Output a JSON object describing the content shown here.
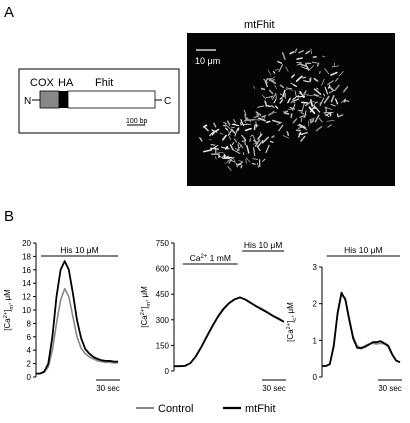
{
  "panel_a": {
    "label": "A",
    "construct": {
      "segments": [
        "COX",
        "HA",
        "Fhit"
      ],
      "n_term": "N",
      "c_term": "C",
      "scale_label": "100 bp"
    },
    "micrograph": {
      "title": "mtFhit",
      "scale_label": "10 μm"
    }
  },
  "panel_b": {
    "label": "B",
    "legend": [
      {
        "name": "Control",
        "color": "#888888"
      },
      {
        "name": "mtFhit",
        "color": "#000000"
      }
    ]
  },
  "chart_data": [
    {
      "type": "line",
      "ylabel": "[Ca2+]m, μM",
      "ylim": [
        0,
        20
      ],
      "yticks": [
        0,
        2,
        4,
        6,
        8,
        10,
        12,
        14,
        16,
        18,
        20
      ],
      "yticklabels": [
        "0",
        "2",
        "4",
        "6",
        "8",
        "10",
        "12",
        "14",
        "16",
        "18",
        "20"
      ],
      "xlim": [
        0,
        100
      ],
      "stimuli": [
        {
          "label": "His 10 μM",
          "from": 6,
          "to": 100
        }
      ],
      "time_bar": "30 sec",
      "series": [
        {
          "name": "Control",
          "color": "#888888",
          "x": [
            0,
            5,
            10,
            15,
            20,
            25,
            30,
            35,
            40,
            45,
            50,
            55,
            60,
            65,
            70,
            75,
            80,
            85,
            90,
            95,
            100
          ],
          "y": [
            0.5,
            0.5,
            0.7,
            1.5,
            4.0,
            8.0,
            11.5,
            13.2,
            12.0,
            9.0,
            6.0,
            4.3,
            3.5,
            3.0,
            2.7,
            2.4,
            2.3,
            2.2,
            2.2,
            2.1,
            2.1
          ]
        },
        {
          "name": "mtFhit",
          "color": "#000000",
          "x": [
            0,
            5,
            10,
            15,
            20,
            25,
            30,
            35,
            40,
            45,
            50,
            55,
            60,
            65,
            70,
            75,
            80,
            85,
            90,
            95,
            100
          ],
          "y": [
            0.5,
            0.5,
            0.8,
            2.0,
            6.0,
            12.0,
            16.0,
            17.3,
            16.0,
            12.5,
            8.5,
            5.8,
            4.2,
            3.5,
            3.0,
            2.7,
            2.5,
            2.4,
            2.4,
            2.3,
            2.3
          ]
        }
      ]
    },
    {
      "type": "line",
      "ylabel": "[Ca2+]m, μM",
      "ylim": [
        0,
        750
      ],
      "yticks": [
        0,
        150,
        300,
        450,
        600,
        750
      ],
      "yticklabels": [
        "0",
        "150",
        "300",
        "450",
        "600",
        "750"
      ],
      "xlim": [
        0,
        100
      ],
      "stimuli": [
        {
          "label": "Ca2+ 1 mM",
          "from": 8,
          "to": 58
        },
        {
          "label": "His 10 μM",
          "from": 62,
          "to": 100
        }
      ],
      "time_bar": "30 sec",
      "series": [
        {
          "name": "Control",
          "color": "#888888",
          "x": [
            0,
            5,
            10,
            15,
            20,
            25,
            30,
            35,
            40,
            45,
            50,
            55,
            60,
            65,
            70,
            75,
            80,
            85,
            90,
            95,
            100
          ],
          "y": [
            28,
            28,
            30,
            45,
            85,
            140,
            200,
            260,
            315,
            360,
            395,
            418,
            430,
            420,
            400,
            380,
            365,
            345,
            325,
            310,
            290
          ]
        },
        {
          "name": "mtFhit",
          "color": "#000000",
          "x": [
            0,
            5,
            10,
            15,
            20,
            25,
            30,
            35,
            40,
            45,
            50,
            55,
            60,
            65,
            70,
            75,
            80,
            85,
            90,
            95,
            100
          ],
          "y": [
            28,
            28,
            30,
            47,
            88,
            143,
            205,
            265,
            320,
            365,
            398,
            420,
            432,
            418,
            398,
            378,
            360,
            342,
            322,
            305,
            287
          ]
        }
      ]
    },
    {
      "type": "line",
      "ylabel": "[Ca2+]c, μM",
      "ylim": [
        0,
        3
      ],
      "yticks": [
        0,
        1,
        2,
        3
      ],
      "yticklabels": [
        "0",
        "1",
        "2",
        "3"
      ],
      "xlim": [
        0,
        100
      ],
      "stimuli": [
        {
          "label": "His 10 μM",
          "from": 6,
          "to": 100
        }
      ],
      "time_bar": "30 sec",
      "series": [
        {
          "name": "Control",
          "color": "#888888",
          "x": [
            0,
            5,
            10,
            15,
            20,
            25,
            30,
            35,
            40,
            45,
            50,
            55,
            60,
            65,
            70,
            75,
            80,
            85,
            90,
            95,
            100
          ],
          "y": [
            0.3,
            0.3,
            0.35,
            0.8,
            1.7,
            2.25,
            2.15,
            1.6,
            1.1,
            0.85,
            0.8,
            0.85,
            0.9,
            0.92,
            0.9,
            0.92,
            0.9,
            0.82,
            0.6,
            0.45,
            0.4
          ]
        },
        {
          "name": "mtFhit",
          "color": "#000000",
          "x": [
            0,
            5,
            10,
            15,
            20,
            25,
            30,
            35,
            40,
            45,
            50,
            55,
            60,
            65,
            70,
            75,
            80,
            85,
            90,
            95,
            100
          ],
          "y": [
            0.3,
            0.3,
            0.35,
            0.85,
            1.75,
            2.3,
            2.1,
            1.55,
            1.05,
            0.8,
            0.78,
            0.82,
            0.88,
            0.95,
            0.95,
            0.98,
            0.92,
            0.85,
            0.62,
            0.45,
            0.4
          ]
        }
      ]
    }
  ]
}
